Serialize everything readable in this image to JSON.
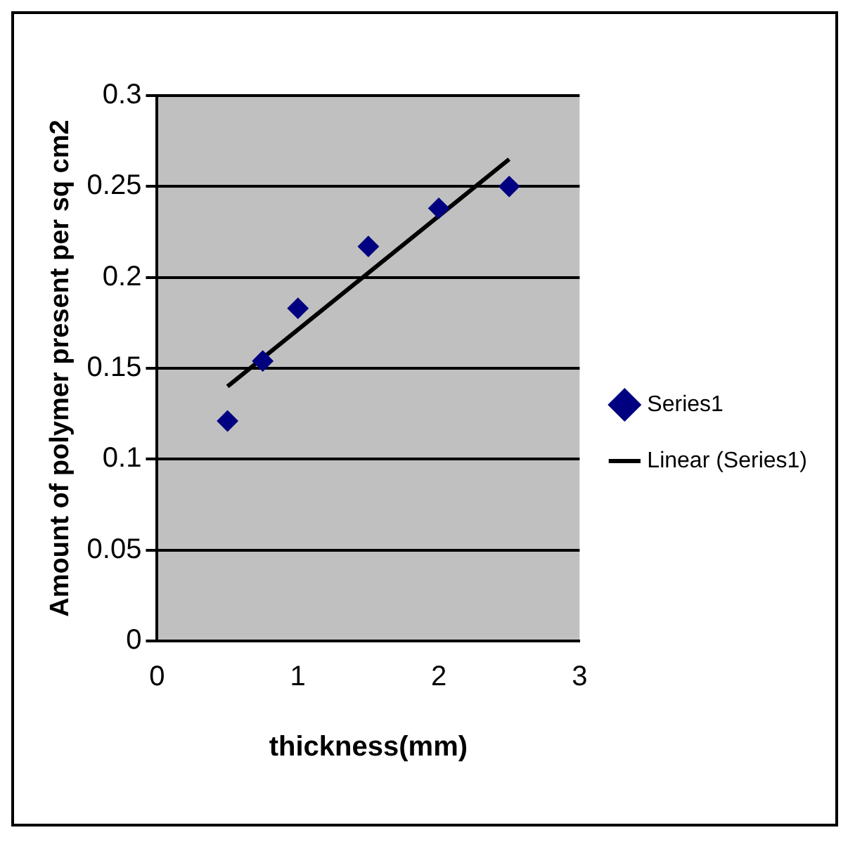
{
  "chart_data": {
    "type": "scatter",
    "xlabel": "thickness(mm)",
    "ylabel": "Amount of polymer present per sq cm2",
    "xlim": [
      0,
      3
    ],
    "xticks": [
      0,
      1,
      2,
      3
    ],
    "ylim": [
      0,
      0.3
    ],
    "yticks": [
      0,
      0.05,
      0.1,
      0.15,
      0.2,
      0.25,
      0.3
    ],
    "grid": "y",
    "legend": "right",
    "series": [
      {
        "name": "Series1",
        "type": "scatter",
        "color": "#000080",
        "marker": "diamond",
        "x": [
          0.5,
          0.75,
          1,
          1.5,
          2,
          2.5
        ],
        "values": [
          0.121,
          0.154,
          0.183,
          0.217,
          0.238,
          0.25
        ]
      },
      {
        "name": "Linear (Series1)",
        "type": "line",
        "color": "#000000",
        "marker": "none",
        "line_style": "solid",
        "x": [
          0.5,
          2.5
        ],
        "values": [
          0.14,
          0.265
        ]
      }
    ]
  }
}
